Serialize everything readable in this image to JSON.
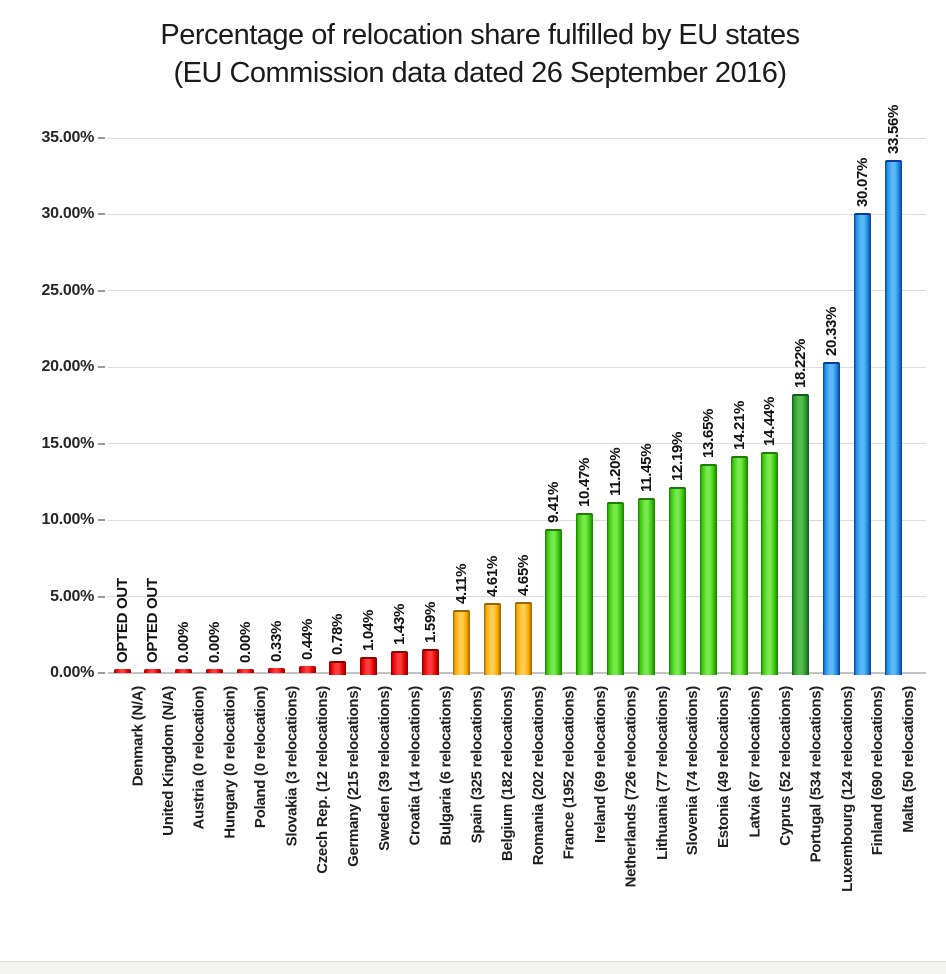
{
  "title": {
    "line1": "Percentage of relocation share fulfilled by EU states",
    "line2": "(EU Commission data dated 26 September 2016)"
  },
  "chart_data": {
    "type": "bar",
    "title": "Percentage of relocation share fulfilled by EU states (EU Commission data dated 26 September 2016)",
    "xlabel": "",
    "ylabel": "",
    "ylim": [
      0,
      35
    ],
    "grid": true,
    "y_tick_labels": [
      "0.00%",
      "5.00%",
      "10.00%",
      "15.00%",
      "20.00%",
      "25.00%",
      "30.00%",
      "35.00%"
    ],
    "palette": {
      "red": {
        "main": "#e60505",
        "light": "#ff3a3a",
        "dark": "#8c0000"
      },
      "orange": {
        "main": "#ffaa00",
        "light": "#ffcd52",
        "dark": "#9c6300"
      },
      "green": {
        "main": "#3bcb0e",
        "light": "#78e84c",
        "dark": "#1c7d02"
      },
      "darkgreen": {
        "main": "#2f9e2f",
        "light": "#55bd50",
        "dark": "#155a1a"
      },
      "blue": {
        "main": "#2191e6",
        "light": "#5cb8f4",
        "dark": "#0a3a9c"
      }
    },
    "bars": [
      {
        "category": "Denmark (N/A)",
        "value": null,
        "value_label": "OPTED OUT",
        "color": "red"
      },
      {
        "category": "United Kingdom (N/A)",
        "value": null,
        "value_label": "OPTED OUT",
        "color": "red"
      },
      {
        "category": "Austria (0 relocation)",
        "value": 0.0,
        "value_label": "0.00%",
        "color": "red"
      },
      {
        "category": "Hungary (0 relocation)",
        "value": 0.0,
        "value_label": "0.00%",
        "color": "red"
      },
      {
        "category": "Poland (0 relocation)",
        "value": 0.0,
        "value_label": "0.00%",
        "color": "red"
      },
      {
        "category": "Slovakia (3 relocations)",
        "value": 0.33,
        "value_label": "0.33%",
        "color": "red"
      },
      {
        "category": "Czech Rep. (12 relocations)",
        "value": 0.44,
        "value_label": "0.44%",
        "color": "red"
      },
      {
        "category": "Germany (215 relocations)",
        "value": 0.78,
        "value_label": "0.78%",
        "color": "red"
      },
      {
        "category": "Sweden (39 relocations)",
        "value": 1.04,
        "value_label": "1.04%",
        "color": "red"
      },
      {
        "category": "Croatia (14 relocations)",
        "value": 1.43,
        "value_label": "1.43%",
        "color": "red"
      },
      {
        "category": "Bulgaria (6 relocations)",
        "value": 1.59,
        "value_label": "1.59%",
        "color": "red"
      },
      {
        "category": "Spain (325 relocations)",
        "value": 4.11,
        "value_label": "4.11%",
        "color": "orange"
      },
      {
        "category": "Belgium (182 relocations)",
        "value": 4.61,
        "value_label": "4.61%",
        "color": "orange"
      },
      {
        "category": "Romania (202 relocations)",
        "value": 4.65,
        "value_label": "4.65%",
        "color": "orange"
      },
      {
        "category": "France (1952 relocations)",
        "value": 9.41,
        "value_label": "9.41%",
        "color": "green"
      },
      {
        "category": "Ireland (69 relocations)",
        "value": 10.47,
        "value_label": "10.47%",
        "color": "green"
      },
      {
        "category": "Netherlands (726 relocations)",
        "value": 11.2,
        "value_label": "11.20%",
        "color": "green"
      },
      {
        "category": "Lithuania (77 relocations)",
        "value": 11.45,
        "value_label": "11.45%",
        "color": "green"
      },
      {
        "category": "Slovenia (74 relocations)",
        "value": 12.19,
        "value_label": "12.19%",
        "color": "green"
      },
      {
        "category": "Estonia (49 relocations)",
        "value": 13.65,
        "value_label": "13.65%",
        "color": "green"
      },
      {
        "category": "Latvia (67 relocations)",
        "value": 14.21,
        "value_label": "14.21%",
        "color": "green"
      },
      {
        "category": "Cyprus (52 relocations)",
        "value": 14.44,
        "value_label": "14.44%",
        "color": "green"
      },
      {
        "category": "Portugal (534 relocations)",
        "value": 18.22,
        "value_label": "18.22%",
        "color": "darkgreen"
      },
      {
        "category": "Luxembourg (124 relocations)",
        "value": 20.33,
        "value_label": "20.33%",
        "color": "blue"
      },
      {
        "category": "Finland (690 relocations)",
        "value": 30.07,
        "value_label": "30.07%",
        "color": "blue"
      },
      {
        "category": "Malta (50 relocations)",
        "value": 33.56,
        "value_label": "33.56%",
        "color": "blue"
      }
    ]
  }
}
